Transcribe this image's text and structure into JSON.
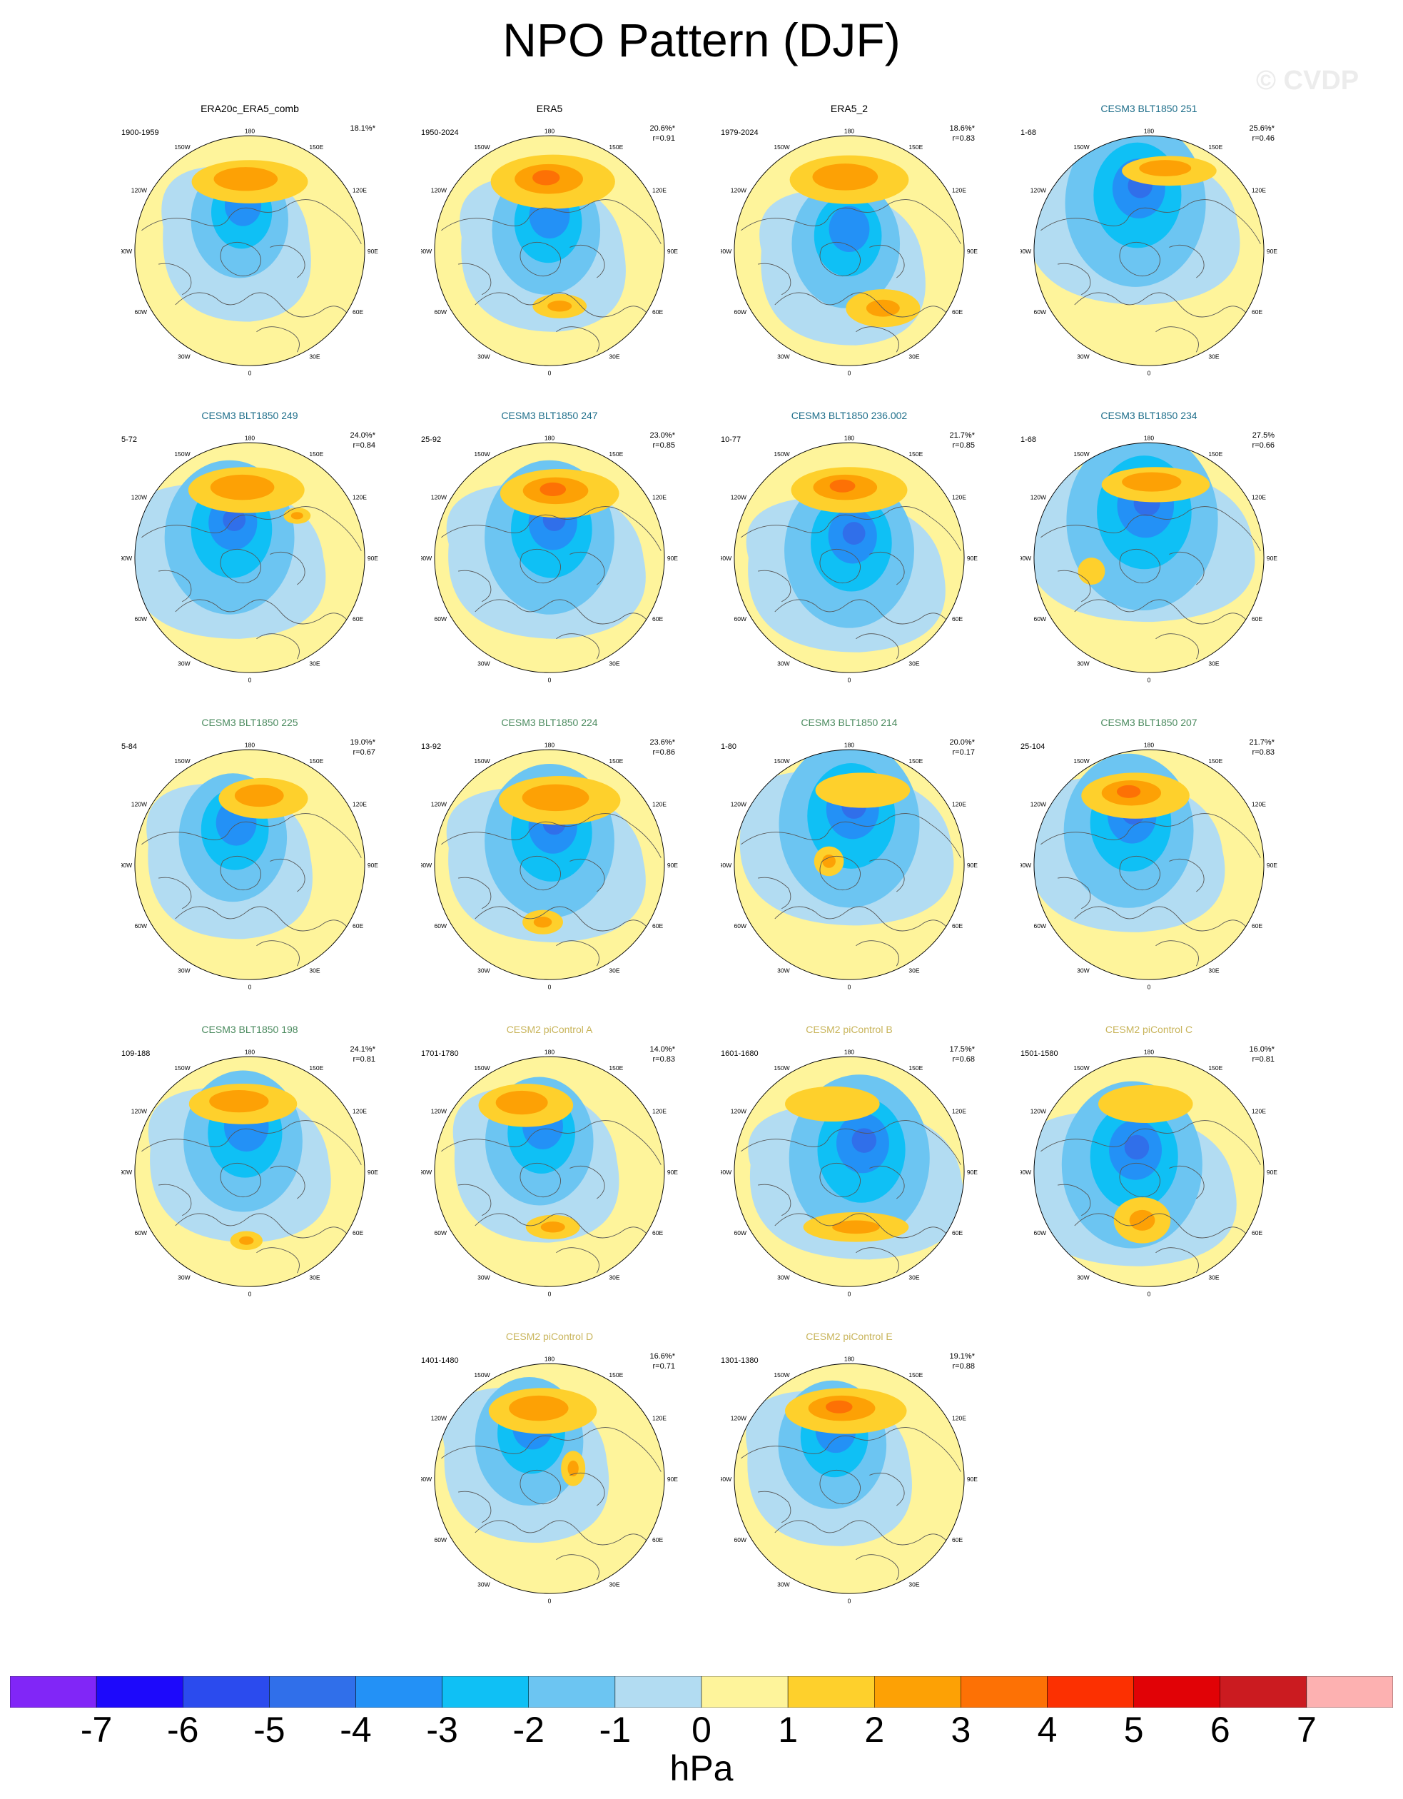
{
  "title": "NPO Pattern (DJF)",
  "watermark": "© CVDP",
  "colorbar": {
    "colors": [
      "#8126f7",
      "#1d09fb",
      "#2b4bee",
      "#306fea",
      "#2391f6",
      "#0fc0f5",
      "#6cc5f2",
      "#b2dcf2",
      "#fef49b",
      "#fed02c",
      "#fda105",
      "#fd7105",
      "#fc3001",
      "#e10206",
      "#cb1b20",
      "#fdb1b1"
    ],
    "ticks": [
      "-7",
      "-6",
      "-5",
      "-4",
      "-3",
      "-2",
      "-1",
      "0",
      "1",
      "2",
      "3",
      "4",
      "5",
      "6",
      "7"
    ],
    "units": "hPa"
  },
  "longitude_labels": {
    "top": "180",
    "upper_left": "150W",
    "upper_right": "150E",
    "mid_upper_left": "120W",
    "mid_upper_right": "120E",
    "left": "90W",
    "right": "90E",
    "mid_lower_left": "60W",
    "mid_lower_right": "60E",
    "lower_left": "30W",
    "lower_right": "30E",
    "bottom": "0"
  },
  "panels": [
    {
      "title": "ERA20c_ERA5_comb",
      "title_color": "#000000",
      "period": "1900-1959",
      "pct": "18.1%*",
      "r": "",
      "style": 0
    },
    {
      "title": "ERA5",
      "title_color": "#000000",
      "period": "1950-2024",
      "pct": "20.6%*",
      "r": "r=0.91",
      "style": 1
    },
    {
      "title": "ERA5_2",
      "title_color": "#000000",
      "period": "1979-2024",
      "pct": "18.6%*",
      "r": "r=0.83",
      "style": 2
    },
    {
      "title": "CESM3 BLT1850 251",
      "title_color": "#1e6e8a",
      "period": "1-68",
      "pct": "25.6%*",
      "r": "r=0.46",
      "style": 3
    },
    {
      "title": "CESM3 BLT1850 249",
      "title_color": "#1e6e8a",
      "period": "5-72",
      "pct": "24.0%*",
      "r": "r=0.84",
      "style": 4
    },
    {
      "title": "CESM3 BLT1850 247",
      "title_color": "#1e6e8a",
      "period": "25-92",
      "pct": "23.0%*",
      "r": "r=0.85",
      "style": 5
    },
    {
      "title": "CESM3 BLT1850 236.002",
      "title_color": "#1e6e8a",
      "period": "10-77",
      "pct": "21.7%*",
      "r": "r=0.85",
      "style": 6
    },
    {
      "title": "CESM3 BLT1850 234",
      "title_color": "#1e6e8a",
      "period": "1-68",
      "pct": "27.5%",
      "r": "r=0.66",
      "style": 7
    },
    {
      "title": "CESM3 BLT1850 225",
      "title_color": "#4a8a5e",
      "period": "5-84",
      "pct": "19.0%*",
      "r": "r=0.67",
      "style": 8
    },
    {
      "title": "CESM3 BLT1850 224",
      "title_color": "#4a8a5e",
      "period": "13-92",
      "pct": "23.6%*",
      "r": "r=0.86",
      "style": 9
    },
    {
      "title": "CESM3 BLT1850 214",
      "title_color": "#4a8a5e",
      "period": "1-80",
      "pct": "20.0%*",
      "r": "r=0.17",
      "style": 10
    },
    {
      "title": "CESM3 BLT1850 207",
      "title_color": "#4a8a5e",
      "period": "25-104",
      "pct": "21.7%*",
      "r": "r=0.83",
      "style": 11
    },
    {
      "title": "CESM3 BLT1850 198",
      "title_color": "#4a8a5e",
      "period": "109-188",
      "pct": "24.1%*",
      "r": "r=0.81",
      "style": 12
    },
    {
      "title": "CESM2 piControl A",
      "title_color": "#c8b45a",
      "period": "1701-1780",
      "pct": "14.0%*",
      "r": "r=0.83",
      "style": 13
    },
    {
      "title": "CESM2 piControl B",
      "title_color": "#c8b45a",
      "period": "1601-1680",
      "pct": "17.5%*",
      "r": "r=0.68",
      "style": 14
    },
    {
      "title": "CESM2 piControl C",
      "title_color": "#c8b45a",
      "period": "1501-1580",
      "pct": "16.0%*",
      "r": "r=0.81",
      "style": 15
    },
    {
      "title": "CESM2 piControl D",
      "title_color": "#c8b45a",
      "period": "1401-1480",
      "pct": "16.6%*",
      "r": "r=0.71",
      "style": 16
    },
    {
      "title": "CESM2 piControl E",
      "title_color": "#c8b45a",
      "period": "1301-1380",
      "pct": "19.1%*",
      "r": "r=0.88",
      "style": 17
    }
  ]
}
